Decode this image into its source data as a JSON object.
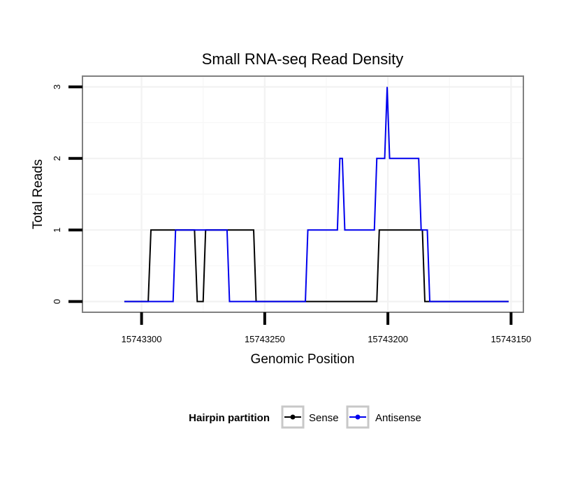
{
  "chart_data": {
    "type": "line",
    "title": "Small RNA-seq Read Density",
    "xlabel": "Genomic Position",
    "ylabel": "Total Reads",
    "x_reversed": true,
    "xlim": [
      15743324,
      15743145
    ],
    "ylim": [
      -0.15,
      3.15
    ],
    "x_ticks": [
      15743300,
      15743250,
      15743200,
      15743150
    ],
    "x_tick_labels": [
      "15743300",
      "15743250",
      "15743200",
      "15743150"
    ],
    "y_ticks": [
      0,
      1,
      2,
      3
    ],
    "y_tick_labels": [
      "0",
      "1",
      "2",
      "3"
    ],
    "grid": true,
    "legend": {
      "title": "Hairpin partition",
      "position": "bottom",
      "entries": [
        "Sense",
        "Antisense"
      ]
    },
    "series": [
      {
        "name": "Sense",
        "color": "#000000",
        "points": [
          [
            15743307,
            0
          ],
          [
            15743297.3,
            0
          ],
          [
            15743296.2,
            1
          ],
          [
            15743278.5,
            1
          ],
          [
            15743277.4,
            0
          ],
          [
            15743275,
            0
          ],
          [
            15743274,
            1
          ],
          [
            15743254.5,
            1
          ],
          [
            15743253.5,
            0
          ],
          [
            15743204.5,
            0
          ],
          [
            15743203.5,
            1
          ],
          [
            15743186,
            1
          ],
          [
            15743185,
            0
          ],
          [
            15743151,
            0
          ]
        ]
      },
      {
        "name": "Antisense",
        "color": "#0000ee",
        "points": [
          [
            15743307,
            0
          ],
          [
            15743287.2,
            0
          ],
          [
            15743286.2,
            1
          ],
          [
            15743266.2,
            1
          ],
          [
            15743265.3,
            1
          ],
          [
            15743264.3,
            0
          ],
          [
            15743233.5,
            0
          ],
          [
            15743232.5,
            1
          ],
          [
            15743220.5,
            1
          ],
          [
            15743219.5,
            2
          ],
          [
            15743218.5,
            2
          ],
          [
            15743217.5,
            1
          ],
          [
            15743205.5,
            1
          ],
          [
            15743204.5,
            2
          ],
          [
            15743201.3,
            2
          ],
          [
            15743200.3,
            3
          ],
          [
            15743199.3,
            2
          ],
          [
            15743187.5,
            2
          ],
          [
            15743186.5,
            1
          ],
          [
            15743184,
            1
          ],
          [
            15743183,
            0
          ],
          [
            15743151,
            0
          ]
        ]
      }
    ]
  }
}
